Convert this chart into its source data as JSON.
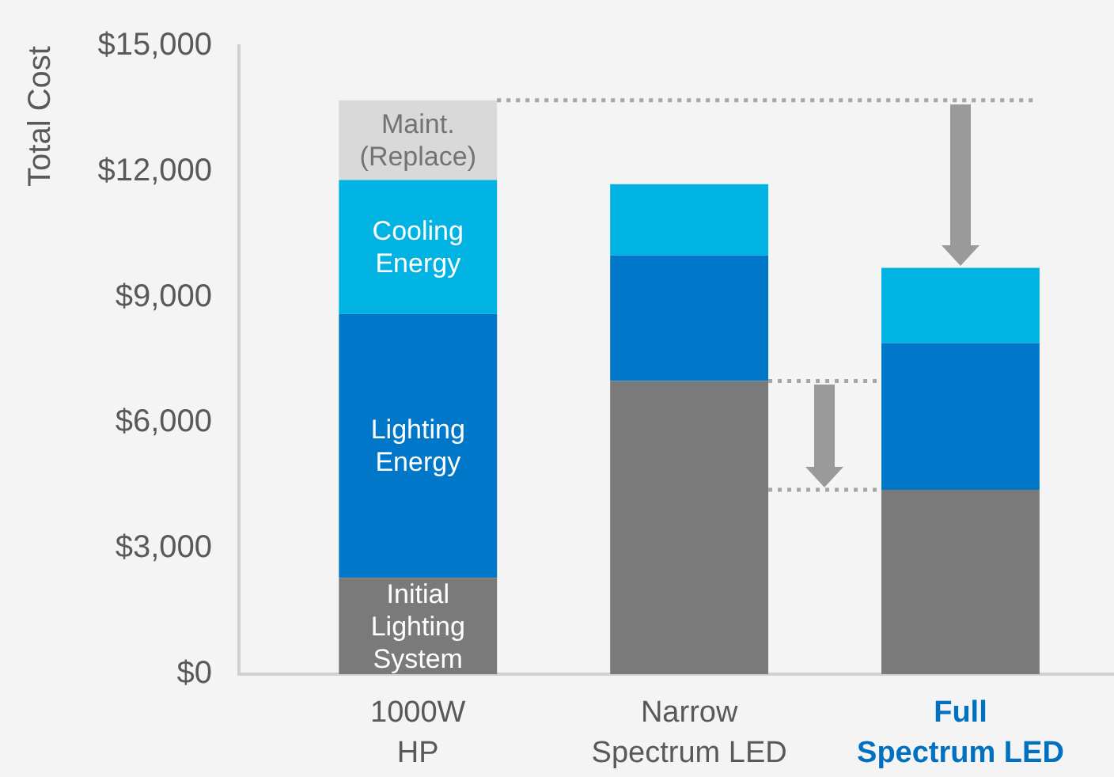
{
  "chart_data": {
    "type": "bar",
    "stacked": true,
    "ylabel": "Total Cost",
    "categories": [
      "1000W HP",
      "Narrow Spectrum LED",
      "Full Spectrum LED"
    ],
    "series": [
      {
        "name": "Initial Lighting System",
        "color": "#7a7a7a",
        "values": [
          2300,
          7000,
          4400
        ]
      },
      {
        "name": "Lighting Energy",
        "color": "#0077c8",
        "values": [
          6300,
          3000,
          3500
        ]
      },
      {
        "name": "Cooling Energy",
        "color": "#00b3e3",
        "values": [
          3200,
          1700,
          1800
        ]
      },
      {
        "name": "Maint. (Replace)",
        "color": "#d9d9d9",
        "values": [
          1900,
          null,
          null
        ]
      }
    ],
    "ylim": [
      0,
      15000
    ],
    "yticks": [
      {
        "value": 0,
        "label": "$0"
      },
      {
        "value": 3000,
        "label": "$3,000"
      },
      {
        "value": 6000,
        "label": "$6,000"
      },
      {
        "value": 9000,
        "label": "$9,000"
      },
      {
        "value": 12000,
        "label": "$12,000"
      },
      {
        "value": 15000,
        "label": "$15,000"
      }
    ],
    "ref_lines": [
      {
        "axis": "y",
        "value": 13700,
        "color": "#a6a6a6",
        "line_style": "dotted"
      },
      {
        "axis": "y",
        "value": 7000,
        "color": "#a6a6a6",
        "line_style": "dotted"
      },
      {
        "axis": "y",
        "value": 4400,
        "color": "#a6a6a6",
        "line_style": "dotted"
      }
    ],
    "grid": false,
    "legend": false
  }
}
